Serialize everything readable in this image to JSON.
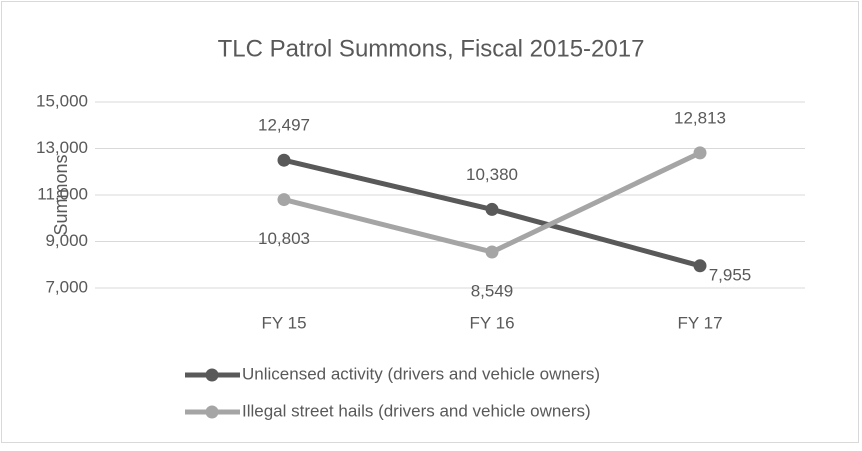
{
  "chart_data": {
    "type": "line",
    "title": "TLC Patrol Summons, Fiscal 2015-2017",
    "y_label": "Summons",
    "categories": [
      "FY 15",
      "FY 16",
      "FY 17"
    ],
    "series": [
      {
        "name": "Unlicensed activity (drivers and vehicle owners)",
        "color": "#595959",
        "values": [
          12497,
          10380,
          7955
        ],
        "value_labels": [
          "12,497",
          "10,380",
          "7,955"
        ]
      },
      {
        "name": "Illegal street hails (drivers and vehicle owners)",
        "color": "#a5a5a5",
        "values": [
          10803,
          8549,
          12813
        ],
        "value_labels": [
          "10,803",
          "8,549",
          "12,813"
        ]
      }
    ],
    "ylim": [
      7000,
      15000
    ],
    "yticks": [
      {
        "value": 7000,
        "label": "7,000"
      },
      {
        "value": 9000,
        "label": "9,000"
      },
      {
        "value": 11000,
        "label": "11,000"
      },
      {
        "value": 13000,
        "label": "13,000"
      },
      {
        "value": 15000,
        "label": "15,000"
      }
    ],
    "grid": true,
    "legend": "bottom"
  }
}
